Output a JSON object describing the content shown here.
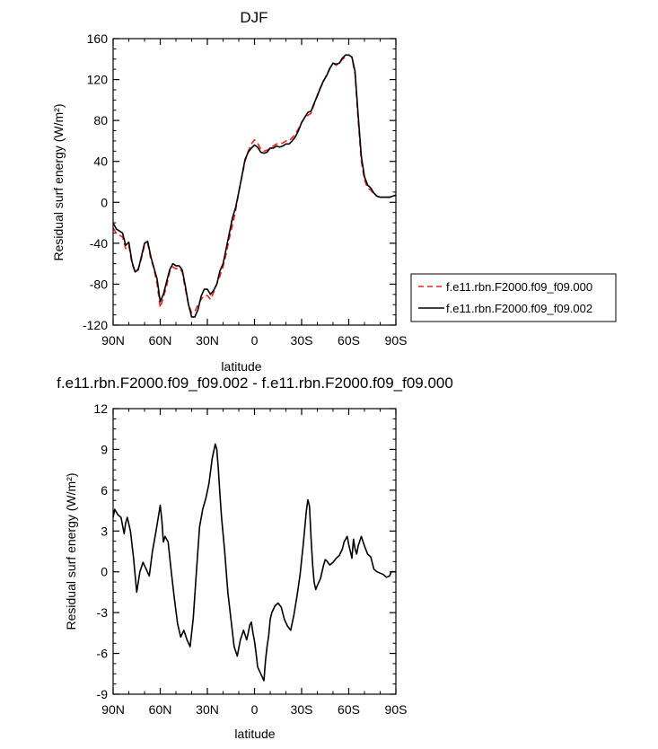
{
  "chart_data": [
    {
      "type": "line",
      "title": "DJF",
      "xlabel": "latitude",
      "ylabel": "Residual surf energy (W/m²)",
      "ylim": [
        -120,
        160
      ],
      "xlim": [
        90,
        -90
      ],
      "yticks": [
        -120,
        -80,
        -40,
        0,
        40,
        80,
        120,
        160
      ],
      "xticks": [
        90,
        60,
        30,
        0,
        -30,
        -60,
        -90
      ],
      "xticklabels": [
        "90N",
        "60N",
        "30N",
        "0",
        "30S",
        "60S",
        "90S"
      ],
      "legend": "right",
      "series": [
        {
          "name": "f.e11.rbn.F2000.f09_f09.000",
          "color": "#e8261f",
          "dash": "dashed",
          "x": [
            90,
            88,
            86,
            84,
            82,
            80,
            78,
            76,
            74,
            72,
            70,
            68,
            66,
            64,
            62,
            60,
            58,
            56,
            54,
            52,
            50,
            48,
            46,
            44,
            42,
            40,
            38,
            36,
            34,
            32,
            30,
            28,
            26,
            24,
            22,
            20,
            18,
            16,
            14,
            12,
            10,
            8,
            6,
            4,
            2,
            0,
            -2,
            -4,
            -6,
            -8,
            -10,
            -12,
            -14,
            -16,
            -18,
            -20,
            -22,
            -24,
            -26,
            -28,
            -30,
            -32,
            -34,
            -36,
            -38,
            -40,
            -42,
            -44,
            -46,
            -48,
            -50,
            -52,
            -54,
            -56,
            -58,
            -60,
            -62,
            -64,
            -66,
            -68,
            -70,
            -72,
            -74,
            -76,
            -78,
            -80,
            -82,
            -84,
            -86,
            -88,
            -90
          ],
          "values": [
            -25,
            -30,
            -32,
            -34,
            -45,
            -42,
            -60,
            -68,
            -65,
            -55,
            -42,
            -40,
            -55,
            -65,
            -80,
            -103,
            -93,
            -82,
            -68,
            -63,
            -65,
            -64,
            -68,
            -85,
            -100,
            -108,
            -107,
            -100,
            -95,
            -91,
            -91,
            -95,
            -88,
            -80,
            -72,
            -63,
            -50,
            -35,
            -22,
            -8,
            10,
            25,
            40,
            50,
            57,
            61,
            58,
            52,
            50,
            51,
            53,
            55,
            57,
            57,
            58,
            60,
            60,
            63,
            67,
            72,
            78,
            83,
            85,
            87,
            96,
            105,
            112,
            118,
            125,
            131,
            136,
            134,
            136,
            140,
            142,
            144,
            142,
            125,
            80,
            40,
            22,
            14,
            12,
            8,
            6,
            5,
            5,
            5,
            5,
            6,
            7
          ]
        },
        {
          "name": "f.e11.rbn.F2000.f09_f09.002",
          "color": "#000000",
          "dash": "solid",
          "x": [
            90,
            88,
            86,
            84,
            82,
            80,
            78,
            76,
            74,
            72,
            70,
            68,
            66,
            64,
            62,
            60,
            58,
            56,
            54,
            52,
            50,
            48,
            46,
            44,
            42,
            40,
            38,
            36,
            34,
            32,
            30,
            28,
            26,
            24,
            22,
            20,
            18,
            16,
            14,
            12,
            10,
            8,
            6,
            4,
            2,
            0,
            -2,
            -4,
            -6,
            -8,
            -10,
            -12,
            -14,
            -16,
            -18,
            -20,
            -22,
            -24,
            -26,
            -28,
            -30,
            -32,
            -34,
            -36,
            -38,
            -40,
            -42,
            -44,
            -46,
            -48,
            -50,
            -52,
            -54,
            -56,
            -58,
            -60,
            -62,
            -64,
            -66,
            -68,
            -70,
            -72,
            -74,
            -76,
            -78,
            -80,
            -82,
            -84,
            -86,
            -88,
            -90
          ],
          "values": [
            -20,
            -26,
            -28,
            -30,
            -42,
            -39,
            -58,
            -68,
            -66,
            -53,
            -40,
            -38,
            -53,
            -64,
            -75,
            -97,
            -90,
            -78,
            -66,
            -60,
            -62,
            -62,
            -66,
            -82,
            -100,
            -112,
            -112,
            -105,
            -92,
            -85,
            -85,
            -90,
            -86,
            -80,
            -67,
            -60,
            -45,
            -30,
            -15,
            -5,
            10,
            26,
            42,
            49,
            53,
            56,
            54,
            49,
            48,
            49,
            53,
            53,
            55,
            54,
            55,
            57,
            57,
            60,
            64,
            70,
            78,
            83,
            88,
            89,
            97,
            104,
            112,
            119,
            124,
            131,
            136,
            135,
            136,
            141,
            144,
            144,
            142,
            128,
            85,
            45,
            25,
            17,
            14,
            9,
            6,
            5,
            5,
            5,
            5,
            6,
            7
          ]
        }
      ]
    },
    {
      "type": "line",
      "title": "f.e11.rbn.F2000.f09_f09.002 - f.e11.rbn.F2000.f09_f09.000",
      "xlabel": "latitude",
      "ylabel": "Residual surf energy (W/m²)",
      "ylim": [
        -9,
        12
      ],
      "xlim": [
        90,
        -90
      ],
      "yticks": [
        -9,
        -6,
        -3,
        0,
        3,
        6,
        9,
        12
      ],
      "xticks": [
        90,
        60,
        30,
        0,
        -30,
        -60,
        -90
      ],
      "xticklabels": [
        "90N",
        "60N",
        "30N",
        "0",
        "30S",
        "60S",
        "90S"
      ],
      "series": [
        {
          "color": "#000000",
          "x": [
            90,
            89,
            87,
            85,
            83,
            82,
            81,
            79,
            77,
            75,
            73,
            71,
            69,
            67,
            65,
            63,
            61,
            60,
            59,
            58,
            57,
            55,
            53,
            51,
            49,
            47,
            45,
            43,
            41,
            39,
            37,
            35,
            33,
            31,
            29,
            27,
            25,
            24,
            23,
            22,
            21,
            19,
            17,
            15,
            13,
            11,
            9,
            7,
            5,
            4,
            3,
            2,
            1,
            0,
            -1,
            -2,
            -4,
            -6,
            -7,
            -8,
            -9,
            -10,
            -11,
            -13,
            -15,
            -17,
            -19,
            -21,
            -23,
            -25,
            -27,
            -29,
            -31,
            -33,
            -34,
            -35,
            -36,
            -37,
            -38,
            -39,
            -40,
            -42,
            -44,
            -45,
            -46,
            -48,
            -50,
            -52,
            -54,
            -56,
            -57,
            -58,
            -59,
            -60,
            -61,
            -62,
            -63,
            -64,
            -65,
            -66,
            -68,
            -70,
            -72,
            -74,
            -76,
            -78,
            -80,
            -82,
            -84,
            -86,
            -87,
            -88,
            -90
          ],
          "values": [
            4.0,
            4.6,
            4.2,
            4.0,
            2.8,
            3.6,
            4.0,
            3.0,
            1.0,
            -1.5,
            0,
            0.7,
            0.2,
            -0.3,
            1.5,
            2.8,
            4.2,
            4.9,
            3.8,
            2.2,
            2.6,
            2.2,
            0,
            -2.0,
            -3.8,
            -4.8,
            -4.3,
            -5.0,
            -5.5,
            -3.4,
            0,
            3.3,
            4.6,
            5.4,
            6.5,
            8.3,
            9.4,
            9.0,
            7.5,
            5.7,
            4.0,
            1.5,
            -1.5,
            -3.5,
            -5.5,
            -6.2,
            -5.0,
            -4.3,
            -5.0,
            -4.5,
            -3.9,
            -3.7,
            -4.5,
            -5.1,
            -6.0,
            -7.0,
            -7.5,
            -8.0,
            -6.5,
            -5.5,
            -4.7,
            -3.5,
            -3.0,
            -2.5,
            -2.3,
            -2.6,
            -3.5,
            -4.0,
            -4.3,
            -3.2,
            -1.8,
            -0.2,
            2.0,
            4.5,
            5.3,
            4.8,
            2.5,
            0.5,
            -0.8,
            -1.3,
            -1.0,
            -0.5,
            0.5,
            0.9,
            0.8,
            0.5,
            0.7,
            1.0,
            1.2,
            1.7,
            2.2,
            2.4,
            2.6,
            2.0,
            1.5,
            1.0,
            2.4,
            1.7,
            1.3,
            1.9,
            2.6,
            1.9,
            1.3,
            1.1,
            0.2,
            0.0,
            -0.1,
            -0.2,
            -0.4,
            -0.3,
            0.0,
            0.0,
            0.0
          ]
        }
      ]
    }
  ]
}
